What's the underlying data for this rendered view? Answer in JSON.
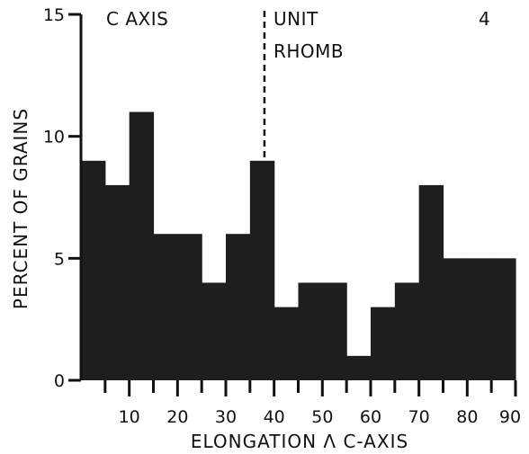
{
  "chart_data": {
    "type": "bar",
    "xlabel": "ELONGATION Λ C-AXIS",
    "ylabel": "PERCENT OF GRAINS",
    "xlim": [
      0,
      90
    ],
    "ylim": [
      0,
      15
    ],
    "x_ticks": [
      10,
      20,
      30,
      40,
      50,
      60,
      70,
      80,
      90
    ],
    "y_ticks": [
      0,
      5,
      10,
      15
    ],
    "bin_width": 5,
    "bins": [
      {
        "start": 0,
        "end": 5,
        "value": 9
      },
      {
        "start": 5,
        "end": 10,
        "value": 8
      },
      {
        "start": 10,
        "end": 15,
        "value": 11
      },
      {
        "start": 15,
        "end": 20,
        "value": 6
      },
      {
        "start": 20,
        "end": 25,
        "value": 6
      },
      {
        "start": 25,
        "end": 30,
        "value": 4
      },
      {
        "start": 30,
        "end": 35,
        "value": 6
      },
      {
        "start": 35,
        "end": 40,
        "value": 9
      },
      {
        "start": 40,
        "end": 45,
        "value": 3
      },
      {
        "start": 45,
        "end": 50,
        "value": 4
      },
      {
        "start": 50,
        "end": 55,
        "value": 4
      },
      {
        "start": 55,
        "end": 60,
        "value": 1
      },
      {
        "start": 60,
        "end": 65,
        "value": 3
      },
      {
        "start": 65,
        "end": 70,
        "value": 4
      },
      {
        "start": 70,
        "end": 75,
        "value": 8
      },
      {
        "start": 75,
        "end": 80,
        "value": 5
      },
      {
        "start": 80,
        "end": 85,
        "value": 5
      },
      {
        "start": 85,
        "end": 90,
        "value": 5
      }
    ],
    "annotations": {
      "series_label": "C AXIS",
      "unit_label_line1": "UNIT",
      "unit_label_line2": "RHOMB",
      "panel_number": "4"
    },
    "reference_line": {
      "x": 38,
      "style": "dashed"
    },
    "bar_color": "#1e1e1e",
    "grid": false
  }
}
